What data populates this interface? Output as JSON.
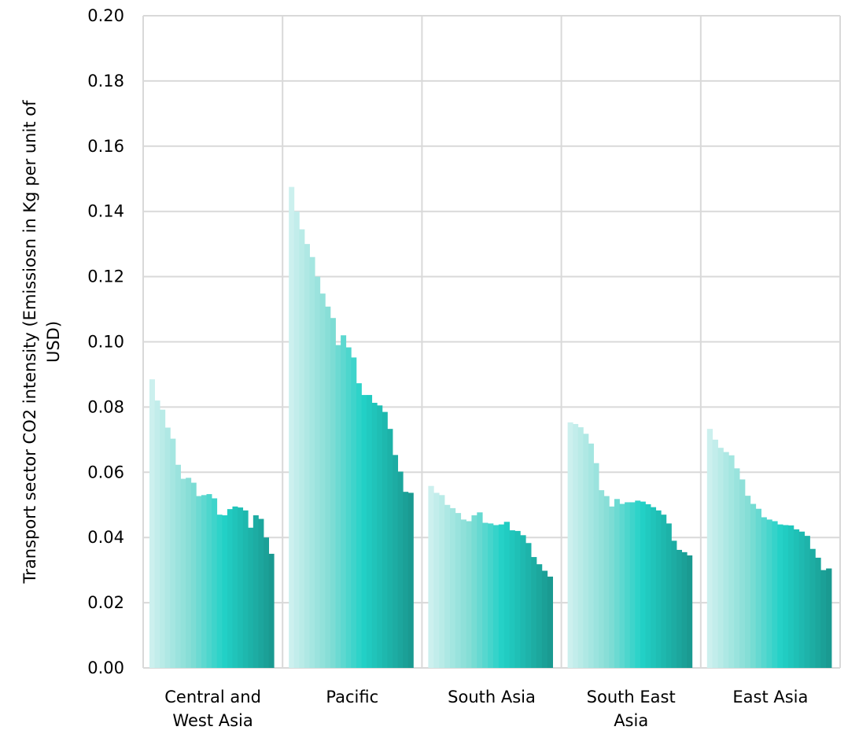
{
  "chart_data": {
    "type": "bar",
    "ylabel": "Transport sector CO2 intensity (Emissiosn in Kg per unit of USD)",
    "ylabel_lines": [
      "Transport sector CO2 intensity (Emissiosn in Kg per unit of",
      "USD)"
    ],
    "ylim": [
      0,
      0.2
    ],
    "yticks": [
      "0.00",
      "0.02",
      "0.04",
      "0.06",
      "0.08",
      "0.10",
      "0.12",
      "0.14",
      "0.16",
      "0.18",
      "0.20"
    ],
    "grid": true,
    "categories": [
      {
        "label_lines": [
          "Central and",
          "West Asia"
        ],
        "values": [
          0.0885,
          0.082,
          0.0792,
          0.0737,
          0.0703,
          0.0623,
          0.058,
          0.0583,
          0.0568,
          0.0527,
          0.053,
          0.0533,
          0.052,
          0.047,
          0.0468,
          0.0487,
          0.0495,
          0.0492,
          0.0483,
          0.043,
          0.0468,
          0.0457,
          0.04,
          0.035
        ]
      },
      {
        "label_lines": [
          "Pacific"
        ],
        "values": [
          0.1475,
          0.14,
          0.1345,
          0.13,
          0.126,
          0.12,
          0.1148,
          0.1108,
          0.1073,
          0.099,
          0.102,
          0.0983,
          0.0952,
          0.0873,
          0.0837,
          0.0837,
          0.0813,
          0.0805,
          0.0785,
          0.0733,
          0.0653,
          0.0602,
          0.054,
          0.0537
        ]
      },
      {
        "label_lines": [
          "South Asia"
        ],
        "values": [
          0.0558,
          0.0537,
          0.053,
          0.05,
          0.049,
          0.0475,
          0.0455,
          0.045,
          0.0468,
          0.0477,
          0.0445,
          0.0443,
          0.0438,
          0.044,
          0.0448,
          0.0422,
          0.042,
          0.0407,
          0.0383,
          0.034,
          0.0318,
          0.0298,
          0.028
        ]
      },
      {
        "label_lines": [
          "South East",
          "Asia"
        ],
        "values": [
          0.0753,
          0.0748,
          0.0738,
          0.0718,
          0.0688,
          0.0628,
          0.0545,
          0.0527,
          0.0495,
          0.0518,
          0.0503,
          0.0508,
          0.0508,
          0.0513,
          0.051,
          0.0502,
          0.0493,
          0.0483,
          0.047,
          0.0443,
          0.039,
          0.0362,
          0.0355,
          0.0345
        ]
      },
      {
        "label_lines": [
          "East Asia"
        ],
        "values": [
          0.0733,
          0.07,
          0.0675,
          0.0662,
          0.0652,
          0.0612,
          0.0578,
          0.0528,
          0.0503,
          0.0488,
          0.0462,
          0.0455,
          0.045,
          0.044,
          0.0438,
          0.0437,
          0.0425,
          0.0418,
          0.0405,
          0.0365,
          0.0338,
          0.03,
          0.0305
        ]
      }
    ],
    "colors": [
      "#ccf0ee",
      "#82ddd5",
      "#22d1c7",
      "#1a9a91"
    ]
  }
}
